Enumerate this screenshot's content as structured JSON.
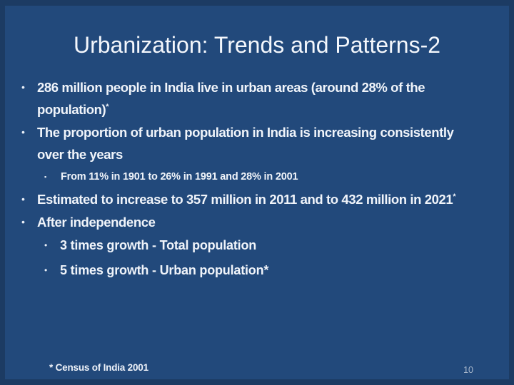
{
  "slide": {
    "title": "Urbanization: Trends and Patterns-2",
    "footnote": "* Census of India 2001",
    "page_number": "10",
    "colors": {
      "background": "#22497b",
      "border_frame": "#1c3b63",
      "text": "#f0f4fa",
      "page_number": "#a9b8cc"
    },
    "bullets": [
      {
        "level": 1,
        "marker": "•",
        "text": "286 million people in India live in urban areas (around 28% of the population)",
        "sup": "*"
      },
      {
        "level": 1,
        "marker": "•",
        "text": "The proportion of urban population in India is increasing consistently over the years",
        "sup": ""
      },
      {
        "level": 2,
        "marker": "▪",
        "text": "From 11% in 1901 to 26% in 1991 and 28% in 2001",
        "sup": ""
      },
      {
        "level": 1,
        "marker": "•",
        "text": "Estimated to increase to 357 million in 2011 and to 432 million in 2021",
        "sup": "*"
      },
      {
        "level": 1,
        "marker": "•",
        "text": "After independence",
        "sup": ""
      },
      {
        "level": 2,
        "marker": "•",
        "text": "3 times growth - Total population",
        "sup": ""
      },
      {
        "level": 2,
        "marker": "•",
        "text": "5 times growth - Urban population*",
        "sup": ""
      }
    ]
  }
}
